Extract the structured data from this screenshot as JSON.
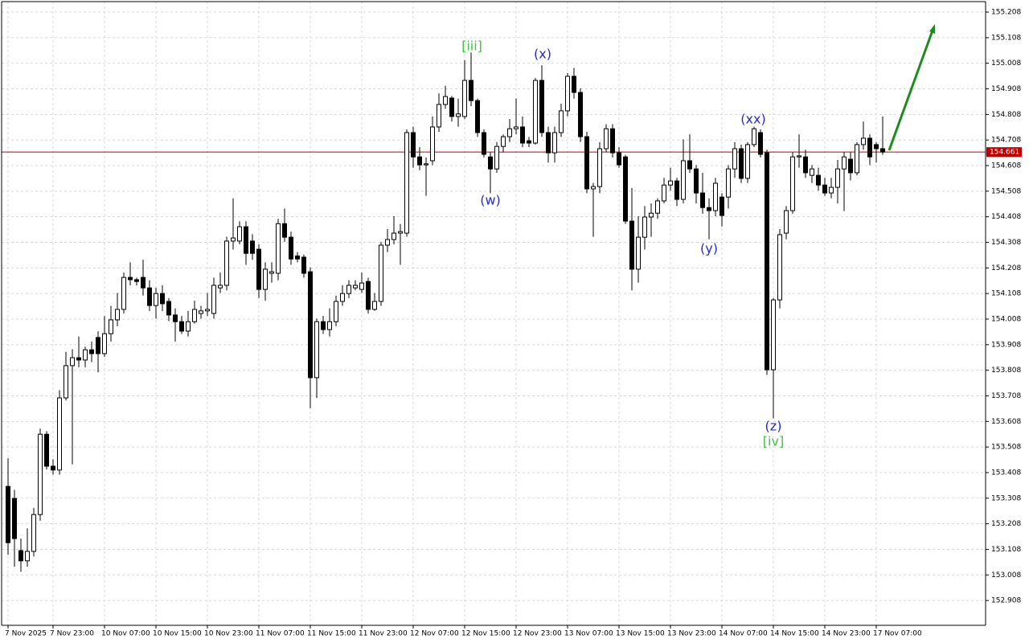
{
  "chart_data": {
    "type": "candlestick",
    "open": [
      153.354,
      153.307,
      153.103,
      153.063,
      153.1,
      153.244,
      153.558,
      153.433,
      153.418,
      153.7,
      153.826,
      153.857,
      153.848,
      153.888,
      153.936,
      153.873,
      153.951,
      154.005,
      154.046,
      154.171,
      154.162,
      154.171,
      154.13,
      154.061,
      154.108,
      154.077,
      154.024,
      153.998,
      153.961,
      153.998,
      154.03,
      154.04,
      154.03,
      154.13,
      154.14,
      154.313,
      154.313,
      154.369,
      154.313,
      154.281,
      154.124,
      154.187,
      154.187,
      154.381,
      154.328,
      154.255,
      154.25,
      154.193,
      153.779,
      153.998,
      153.967,
      153.998,
      154.077,
      154.108,
      154.13,
      154.124,
      154.155,
      154.046,
      154.077,
      154.297,
      154.319,
      154.344,
      154.344,
      154.737,
      154.642,
      154.611,
      154.627,
      154.759,
      154.847,
      154.872,
      154.8,
      154.8,
      154.941,
      154.862,
      154.737,
      154.642,
      154.595,
      154.683,
      154.721,
      154.752,
      154.759,
      154.705,
      154.696,
      154.941,
      154.737,
      154.658,
      154.737,
      154.822,
      154.957,
      154.894,
      154.721,
      154.517,
      154.526,
      154.674,
      154.752,
      154.658,
      154.642,
      154.391,
      154.203,
      154.328,
      154.407,
      154.422,
      154.47,
      154.532,
      154.548,
      154.476,
      154.627,
      154.595,
      154.501,
      154.444,
      154.432,
      154.485,
      154.485,
      154.595,
      154.674,
      154.558,
      154.69,
      154.737,
      154.658,
      153.81,
      154.083,
      154.344,
      154.432,
      154.642,
      154.642,
      154.57,
      154.57,
      154.532,
      154.501,
      154.523,
      154.595,
      154.633,
      154.58,
      154.69,
      154.715,
      154.69,
      154.674
    ],
    "high": [
      153.464,
      153.34,
      153.15,
      153.19,
      153.27,
      153.58,
      153.57,
      153.46,
      153.73,
      153.88,
      153.89,
      153.94,
      153.9,
      153.92,
      153.96,
      154.02,
      154.06,
      154.11,
      154.19,
      154.23,
      154.17,
      154.24,
      154.16,
      154.13,
      154.14,
      154.09,
      154.05,
      154.02,
      154.04,
      154.08,
      154.06,
      154.11,
      154.17,
      154.19,
      154.33,
      154.48,
      154.39,
      154.39,
      154.34,
      154.3,
      154.23,
      154.23,
      154.4,
      154.44,
      154.35,
      154.27,
      154.26,
      154.21,
      154.01,
      154.02,
      154.05,
      154.1,
      154.14,
      154.16,
      154.16,
      154.19,
      154.17,
      154.11,
      154.31,
      154.36,
      154.41,
      154.38,
      154.75,
      154.76,
      154.68,
      154.64,
      154.8,
      154.89,
      154.92,
      154.88,
      154.87,
      155.02,
      155.05,
      154.87,
      154.75,
      154.66,
      154.7,
      154.73,
      154.79,
      154.87,
      154.8,
      154.72,
      154.95,
      155.0,
      154.76,
      154.76,
      154.85,
      154.97,
      154.99,
      154.91,
      154.74,
      154.54,
      154.7,
      154.77,
      154.77,
      154.68,
      154.65,
      154.52,
      154.41,
      154.45,
      154.46,
      154.48,
      154.56,
      154.6,
      154.56,
      154.71,
      154.73,
      154.61,
      154.58,
      154.48,
      154.56,
      154.5,
      154.61,
      154.7,
      154.69,
      154.7,
      154.76,
      154.75,
      154.67,
      154.09,
      154.36,
      154.45,
      154.66,
      154.73,
      154.67,
      154.61,
      154.6,
      154.56,
      154.56,
      154.63,
      154.66,
      154.66,
      154.7,
      154.78,
      154.73,
      154.7,
      154.8
    ],
    "low": [
      153.087,
      153.04,
      153.02,
      153.04,
      153.08,
      153.22,
      153.42,
      153.4,
      153.4,
      153.69,
      153.44,
      153.82,
      153.82,
      153.84,
      153.8,
      153.86,
      153.92,
      153.98,
      154.03,
      154.14,
      154.14,
      154.1,
      154.04,
      154.01,
      154.04,
      154.0,
      153.92,
      153.95,
      153.94,
      153.99,
      154.01,
      154.02,
      154.01,
      154.11,
      154.12,
      154.28,
      154.3,
      154.22,
      154.24,
      154.09,
      154.08,
      154.15,
      154.16,
      154.31,
      154.22,
      154.23,
      154.17,
      153.66,
      153.7,
      153.95,
      153.94,
      153.98,
      154.06,
      154.09,
      154.12,
      154.11,
      154.03,
      154.04,
      154.06,
      154.27,
      154.3,
      154.22,
      154.33,
      154.6,
      154.59,
      154.49,
      154.61,
      154.74,
      154.83,
      154.78,
      154.76,
      154.79,
      154.84,
      154.72,
      154.64,
      154.5,
      154.58,
      154.66,
      154.7,
      154.73,
      154.68,
      154.68,
      154.69,
      154.72,
      154.62,
      154.62,
      154.72,
      154.8,
      154.87,
      154.7,
      154.5,
      154.33,
      154.5,
      154.66,
      154.64,
      154.6,
      154.38,
      154.12,
      154.15,
      154.28,
      154.33,
      154.4,
      154.46,
      154.51,
      154.45,
      154.46,
      154.58,
      154.46,
      154.42,
      154.32,
      154.41,
      154.37,
      154.44,
      154.56,
      154.54,
      154.54,
      154.68,
      154.64,
      153.79,
      153.62,
      154.05,
      154.32,
      154.42,
      154.6,
      154.56,
      154.54,
      154.51,
      154.49,
      154.48,
      154.46,
      154.43,
      154.55,
      154.57,
      154.67,
      154.61,
      154.62,
      154.65
    ],
    "close": [
      153.134,
      153.15,
      153.063,
      153.1,
      153.244,
      153.558,
      153.433,
      153.418,
      153.7,
      153.826,
      153.857,
      153.848,
      153.888,
      153.873,
      153.873,
      153.951,
      154.005,
      154.046,
      154.171,
      154.162,
      154.155,
      154.13,
      154.061,
      154.108,
      154.068,
      154.024,
      153.998,
      153.961,
      153.998,
      154.046,
      154.04,
      154.046,
      154.14,
      154.14,
      154.313,
      154.325,
      154.369,
      154.265,
      154.265,
      154.124,
      154.203,
      154.193,
      154.381,
      154.328,
      154.243,
      154.243,
      154.187,
      153.779,
      153.998,
      153.967,
      153.998,
      154.077,
      154.108,
      154.14,
      154.14,
      154.149,
      154.046,
      154.077,
      154.297,
      154.319,
      154.344,
      154.35,
      154.737,
      154.642,
      154.611,
      154.615,
      154.759,
      154.847,
      154.878,
      154.8,
      154.81,
      154.941,
      154.862,
      154.737,
      154.652,
      154.595,
      154.683,
      154.721,
      154.752,
      154.759,
      154.696,
      154.696,
      154.941,
      154.737,
      154.658,
      154.737,
      154.822,
      154.957,
      154.894,
      154.721,
      154.517,
      154.526,
      154.674,
      154.752,
      154.658,
      154.611,
      154.391,
      154.203,
      154.328,
      154.407,
      154.422,
      154.47,
      154.532,
      154.548,
      154.476,
      154.627,
      154.595,
      154.501,
      154.444,
      154.432,
      154.539,
      154.413,
      154.595,
      154.674,
      154.558,
      154.69,
      154.752,
      154.652,
      153.81,
      154.083,
      154.338,
      154.432,
      154.642,
      154.646,
      154.58,
      154.595,
      154.532,
      154.501,
      154.523,
      154.595,
      154.642,
      154.58,
      154.69,
      154.715,
      154.642,
      154.674,
      154.661
    ],
    "up_color": "#ffffff",
    "down_color": "#000000",
    "xticks": [
      {
        "value": 0,
        "label": "7 Nov 2025"
      },
      {
        "value": 7,
        "label": "7 Nov 23:00"
      },
      {
        "value": 15,
        "label": "10 Nov 07:00"
      },
      {
        "value": 23,
        "label": "10 Nov 15:00"
      },
      {
        "value": 31,
        "label": "10 Nov 23:00"
      },
      {
        "value": 39,
        "label": "11 Nov 07:00"
      },
      {
        "value": 47,
        "label": "11 Nov 15:00"
      },
      {
        "value": 55,
        "label": "11 Nov 23:00"
      },
      {
        "value": 63,
        "label": "12 Nov 07:00"
      },
      {
        "value": 71,
        "label": "12 Nov 15:00"
      },
      {
        "value": 79,
        "label": "12 Nov 23:00"
      },
      {
        "value": 87,
        "label": "13 Nov 07:00"
      },
      {
        "value": 95,
        "label": "13 Nov 15:00"
      },
      {
        "value": 103,
        "label": "13 Nov 23:00"
      },
      {
        "value": 111,
        "label": "14 Nov 07:00"
      },
      {
        "value": 119,
        "label": "14 Nov 15:00"
      },
      {
        "value": 127,
        "label": "14 Nov 23:00"
      },
      {
        "value": 135,
        "label": "17 Nov 07:00"
      }
    ],
    "ylim": [
      152.811,
      155.249
    ],
    "yticks": [
      152.908,
      153.008,
      153.108,
      153.208,
      153.308,
      153.408,
      153.508,
      153.608,
      153.708,
      153.808,
      153.908,
      154.008,
      154.108,
      154.208,
      154.308,
      154.408,
      154.508,
      154.608,
      154.708,
      154.808,
      154.908,
      155.008,
      155.108,
      155.208
    ],
    "grid": true,
    "current_price": 154.661,
    "current_price_color": "#c00000",
    "annotations": [
      {
        "text": "[iii]",
        "color": "#3ec43e"
      },
      {
        "text": "(x)",
        "color": "#2828d8"
      },
      {
        "text": "(w)",
        "color": "#2828d8"
      },
      {
        "text": "(xx)",
        "color": "#2828d8"
      },
      {
        "text": "(y)",
        "color": "#2828d8"
      },
      {
        "text": "(z)",
        "color": "#2828d8"
      },
      {
        "text": "[iv]",
        "color": "#3ec43e"
      }
    ]
  }
}
